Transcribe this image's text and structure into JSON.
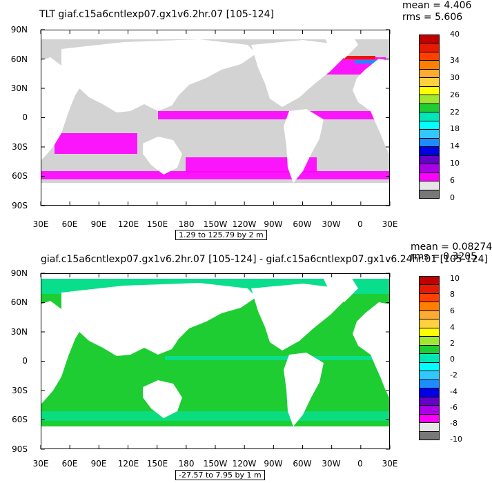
{
  "panels": [
    {
      "title": "TLT giaf.c15a6cntlexp07.gx1v6.2hr.07 [105-124]",
      "mean": "mean = 4.406",
      "rms": "rms = 5.606",
      "range": "1.29 to 125.79 by 2 m",
      "colorbar_labels": [
        "40",
        "34",
        "30",
        "26",
        "22",
        "18",
        "14",
        "10",
        "6",
        "0"
      ],
      "colors": [
        "#c00000",
        "#e61a00",
        "#ff4000",
        "#ff8000",
        "#ffaa33",
        "#ffd040",
        "#ffff00",
        "#a0e632",
        "#1ecd32",
        "#00e6b4",
        "#00ffff",
        "#32c8ff",
        "#1e8cff",
        "#0000e6",
        "#6400c8",
        "#aa00e6",
        "#ff00ff",
        "#e6e6e6",
        "#787878"
      ],
      "map_style": "tlt"
    },
    {
      "title": "giaf.c15a6cntlexp07.gx1v6.2hr.07 [105-124] - giaf.c15a6cntlexp07.gx1v6.24hr.01 [105-124]",
      "mean": "mean = 0.08274",
      "rms": "rms = 0.3205",
      "range": "-27.57 to 7.95 by 1 m",
      "colorbar_labels": [
        "10",
        "8",
        "6",
        "4",
        "2",
        "0",
        "-2",
        "-4",
        "-6",
        "-8",
        "-10"
      ],
      "colors": [
        "#c00000",
        "#e61a00",
        "#ff4000",
        "#ff8000",
        "#ffaa33",
        "#ffd040",
        "#ffff00",
        "#a0e632",
        "#1ecd32",
        "#00e6b4",
        "#00ffff",
        "#32c8ff",
        "#1e8cff",
        "#0000e6",
        "#6400c8",
        "#aa00e6",
        "#ff00ff",
        "#e6e6e6",
        "#787878"
      ],
      "map_style": "diff"
    }
  ],
  "axes": {
    "lat_labels": [
      "90N",
      "60N",
      "30N",
      "0",
      "30S",
      "60S",
      "90S"
    ],
    "lon_labels": [
      "30E",
      "60E",
      "90E",
      "120E",
      "150E",
      "180",
      "150W",
      "120W",
      "90W",
      "60W",
      "30W",
      "0",
      "30E"
    ]
  }
}
